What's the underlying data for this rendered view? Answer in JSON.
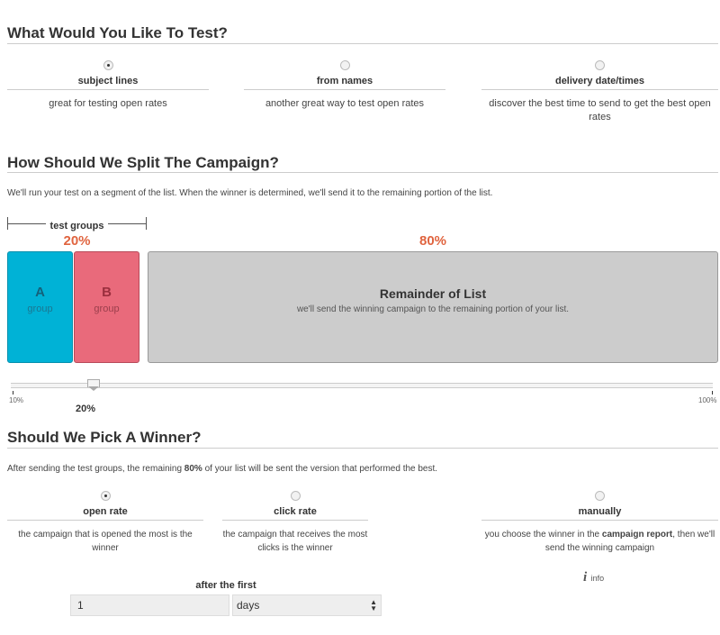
{
  "test": {
    "title": "What Would You Like To Test?",
    "options": [
      {
        "label": "subject lines",
        "desc": "great for testing open rates",
        "selected": true
      },
      {
        "label": "from names",
        "desc": "another great way to test open rates",
        "selected": false
      },
      {
        "label": "delivery date/times",
        "desc": "discover the best time to send to get the best open rates",
        "selected": false
      }
    ]
  },
  "split": {
    "title": "How Should We Split The Campaign?",
    "intro": "We'll run your test on a segment of the list. When the winner is determined, we'll send it to the remaining portion of the list.",
    "test_groups_label": "test groups",
    "test_pct": "20%",
    "remainder_pct": "80%",
    "group_a": {
      "letter": "A",
      "sub": "group"
    },
    "group_b": {
      "letter": "B",
      "sub": "group"
    },
    "remainder": {
      "title": "Remainder of List",
      "desc": "we'll send the winning campaign to the remaining portion of your list."
    },
    "slider": {
      "min_label": "10%",
      "max_label": "100%",
      "value_label": "20%",
      "value": 20,
      "min": 10,
      "max": 100
    },
    "colors": {
      "a": "#00b2d6",
      "b": "#e96a7b",
      "remainder": "#cccccc",
      "pct": "#e0643f"
    }
  },
  "winner": {
    "title": "Should We Pick A Winner?",
    "intro_pre": "After sending the test groups, the remaining ",
    "intro_bold": "80%",
    "intro_post": " of your list will be sent the version that performed the best.",
    "options": [
      {
        "label": "open rate",
        "desc": "the campaign that is opened the most is the winner",
        "selected": true
      },
      {
        "label": "click rate",
        "desc": "the campaign that receives the most clicks is the winner",
        "selected": false
      },
      {
        "label": "manually",
        "desc_pre": "you choose the winner in the ",
        "desc_bold": "campaign report",
        "desc_post": ", then we'll send the winning campaign",
        "selected": false
      }
    ],
    "info_label": "info",
    "after_label": "after the first",
    "amount": "1",
    "unit": "days"
  }
}
